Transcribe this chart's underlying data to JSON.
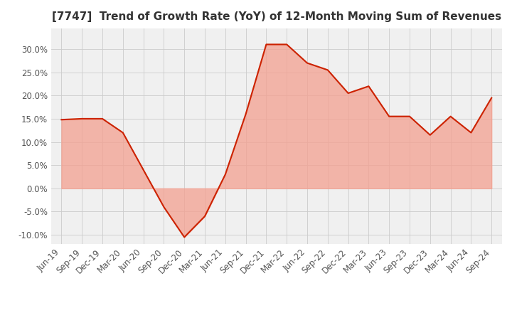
{
  "title": "[7747]  Trend of Growth Rate (YoY) of 12-Month Moving Sum of Revenues",
  "title_fontsize": 11,
  "background_color": "#ffffff",
  "plot_background_color": "#f0f0f0",
  "line_color": "#cc2200",
  "fill_color": "#f4a090",
  "fill_alpha": 0.75,
  "ylim": [
    -0.12,
    0.345
  ],
  "yticks": [
    -0.1,
    -0.05,
    0.0,
    0.05,
    0.1,
    0.15,
    0.2,
    0.25,
    0.3
  ],
  "dates": [
    "Jun-19",
    "Sep-19",
    "Dec-19",
    "Mar-20",
    "Jun-20",
    "Sep-20",
    "Dec-20",
    "Mar-21",
    "Jun-21",
    "Sep-21",
    "Dec-21",
    "Mar-22",
    "Jun-22",
    "Sep-22",
    "Dec-22",
    "Mar-23",
    "Jun-23",
    "Sep-23",
    "Dec-23",
    "Mar-24",
    "Jun-24",
    "Sep-24"
  ],
  "values": [
    0.148,
    0.15,
    0.15,
    0.12,
    0.04,
    -0.04,
    -0.105,
    -0.06,
    0.03,
    0.16,
    0.31,
    0.31,
    0.27,
    0.255,
    0.205,
    0.22,
    0.155,
    0.155,
    0.115,
    0.155,
    0.12,
    0.195
  ],
  "grid_color": "#cccccc",
  "tick_color": "#555555",
  "tick_fontsize": 8.5
}
